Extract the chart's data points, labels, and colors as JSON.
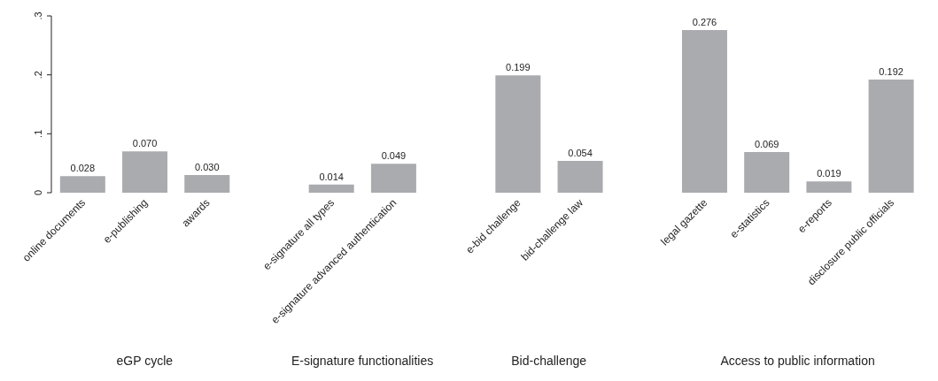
{
  "chart_data": {
    "type": "bar",
    "categories": [
      "online documents",
      "e-publishing",
      "awards",
      null,
      "e-signature all types",
      "e-signature advanced authentication",
      null,
      "e-bid challenge",
      "bid-challenge law",
      null,
      "legal gazette",
      "e-statistics",
      "e-reports",
      "disclosure public officials"
    ],
    "values": [
      0.028,
      0.07,
      0.03,
      null,
      0.014,
      0.049,
      null,
      0.199,
      0.054,
      null,
      0.276,
      0.069,
      0.019,
      0.192
    ],
    "value_labels": [
      "0.028",
      "0.070",
      "0.030",
      null,
      "0.014",
      "0.049",
      null,
      "0.199",
      "0.054",
      null,
      "0.276",
      "0.069",
      "0.019",
      "0.192"
    ],
    "color": "#aaabaf",
    "ylim": [
      0,
      0.3
    ],
    "yticks": [
      0,
      {
        "value": 0.1,
        "label": ".1"
      },
      {
        "value": 0.2,
        "label": ".2"
      },
      {
        "value": 0.3,
        "label": ".3"
      }
    ],
    "annotations": [
      "eGP cycle",
      "E-signature functionalities",
      "Bid-challenge",
      "Access to public information"
    ],
    "grid": false
  }
}
